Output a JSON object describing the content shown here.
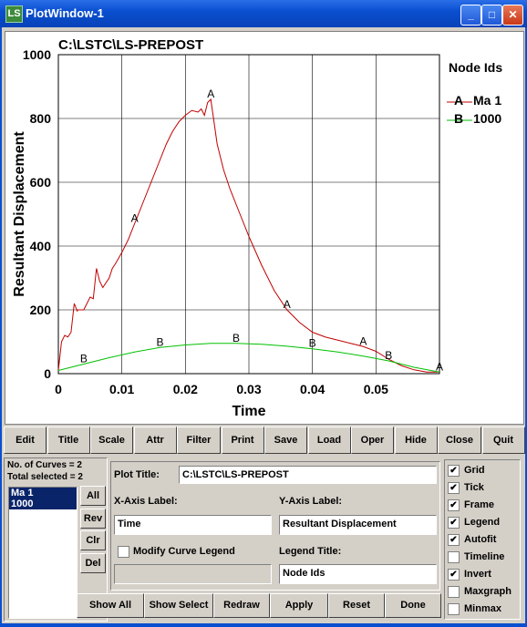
{
  "window": {
    "title": "PlotWindow-1",
    "icon": "ls-app-icon",
    "buttons": {
      "minimize": "_",
      "maximize": "□",
      "close": "✕"
    }
  },
  "plot": {
    "heading": "C:\\LSTC\\LS-PREPOST"
  },
  "chart_data": {
    "type": "line",
    "title": "C:\\LSTC\\LS-PREPOST",
    "xlabel": "Time",
    "ylabel": "Resultant Displacement",
    "xlim": [
      0,
      0.06
    ],
    "ylim": [
      0,
      1000
    ],
    "xticks": [
      "0",
      "0.01",
      "0.02",
      "0.03",
      "0.04",
      "0.05"
    ],
    "yticks": [
      "0",
      "200",
      "400",
      "600",
      "800",
      "1000"
    ],
    "grid": true,
    "legend": {
      "title": "Node Ids",
      "placement": "right"
    },
    "series": [
      {
        "name": "Ma 1",
        "marker": "A",
        "color": "#c00000",
        "x": [
          0,
          0.0005,
          0.001,
          0.0015,
          0.002,
          0.0025,
          0.003,
          0.003,
          0.004,
          0.005,
          0.0055,
          0.006,
          0.0065,
          0.007,
          0.008,
          0.0085,
          0.009,
          0.01,
          0.011,
          0.012,
          0.013,
          0.014,
          0.015,
          0.016,
          0.017,
          0.018,
          0.019,
          0.02,
          0.021,
          0.022,
          0.0225,
          0.023,
          0.0235,
          0.024,
          0.0245,
          0.025,
          0.026,
          0.027,
          0.028,
          0.029,
          0.03,
          0.032,
          0.034,
          0.036,
          0.038,
          0.04,
          0.042,
          0.044,
          0.046,
          0.048,
          0.05,
          0.052,
          0.054,
          0.056,
          0.058,
          0.06
        ],
        "y": [
          10,
          100,
          120,
          115,
          130,
          220,
          195,
          200,
          200,
          240,
          235,
          330,
          290,
          270,
          300,
          330,
          345,
          380,
          420,
          470,
          520,
          570,
          620,
          670,
          720,
          760,
          790,
          810,
          825,
          820,
          830,
          810,
          850,
          860,
          790,
          720,
          640,
          580,
          530,
          480,
          430,
          340,
          260,
          200,
          160,
          130,
          115,
          105,
          95,
          85,
          70,
          45,
          25,
          12,
          5,
          5
        ],
        "markers_at_x": [
          0.012,
          0.024,
          0.036,
          0.048,
          0.06
        ]
      },
      {
        "name": "1000",
        "marker": "B",
        "color": "#00c000",
        "x": [
          0,
          0.004,
          0.008,
          0.012,
          0.016,
          0.02,
          0.024,
          0.028,
          0.032,
          0.036,
          0.04,
          0.044,
          0.048,
          0.052,
          0.056,
          0.06
        ],
        "y": [
          10,
          30,
          50,
          68,
          82,
          90,
          95,
          95,
          92,
          86,
          78,
          68,
          55,
          40,
          20,
          5
        ],
        "markers_at_x": [
          0.004,
          0.016,
          0.028,
          0.04,
          0.052
        ]
      }
    ]
  },
  "toolbar": [
    "Edit",
    "Title",
    "Scale",
    "Attr",
    "Filter",
    "Print",
    "Save",
    "Load",
    "Oper",
    "Hide",
    "Close",
    "Quit"
  ],
  "curves": {
    "count_label": "No. of Curves = 2",
    "selected_label": "Total selected = 2",
    "items": [
      "Ma 1",
      "1000"
    ]
  },
  "list_buttons": [
    "All",
    "Rev",
    "Clr",
    "Del"
  ],
  "form": {
    "plot_title_label": "Plot Title:",
    "plot_title_value": "C:\\LSTC\\LS-PREPOST",
    "xaxis_label": "X-Axis Label:",
    "xaxis_value": "Time",
    "yaxis_label": "Y-Axis Label:",
    "yaxis_value": "Resultant Displacement",
    "modify_legend_label": "Modify Curve Legend",
    "modify_legend_checked": false,
    "legend_title_label": "Legend Title:",
    "legend_title_value": "Node Ids",
    "legend_field_value": ""
  },
  "bottom_buttons": [
    "Show All",
    "Show Select",
    "Redraw",
    "Apply",
    "Reset",
    "Done"
  ],
  "options": [
    {
      "label": "Grid",
      "checked": true
    },
    {
      "label": "Tick",
      "checked": true
    },
    {
      "label": "Frame",
      "checked": true
    },
    {
      "label": "Legend",
      "checked": true
    },
    {
      "label": "Autofit",
      "checked": true
    },
    {
      "label": "Timeline",
      "checked": false
    },
    {
      "label": "Invert",
      "checked": true
    },
    {
      "label": "Maxgraph",
      "checked": false
    },
    {
      "label": "Minmax",
      "checked": false
    }
  ]
}
